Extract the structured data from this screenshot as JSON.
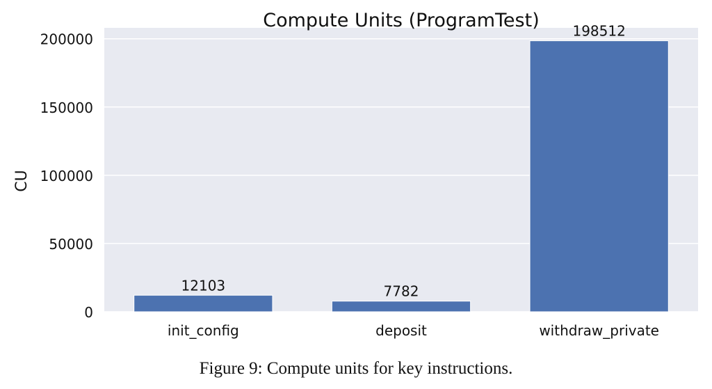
{
  "chart_data": {
    "type": "bar",
    "title": "Compute Units (ProgramTest)",
    "xlabel": "",
    "ylabel": "CU",
    "categories": [
      "init_config",
      "deposit",
      "withdraw_private"
    ],
    "values": [
      12103,
      7782,
      198512
    ],
    "data_labels": [
      "12103",
      "7782",
      "198512"
    ],
    "yticks": [
      0,
      50000,
      100000,
      150000,
      200000
    ],
    "ytick_labels": [
      "0",
      "50000",
      "100000",
      "150000",
      "200000"
    ],
    "ylim": [
      0,
      208000
    ],
    "grid": true,
    "bar_color": "#4c72b0",
    "background_color": "#e8eaf1"
  },
  "caption": "Figure 9: Compute units for key instructions."
}
